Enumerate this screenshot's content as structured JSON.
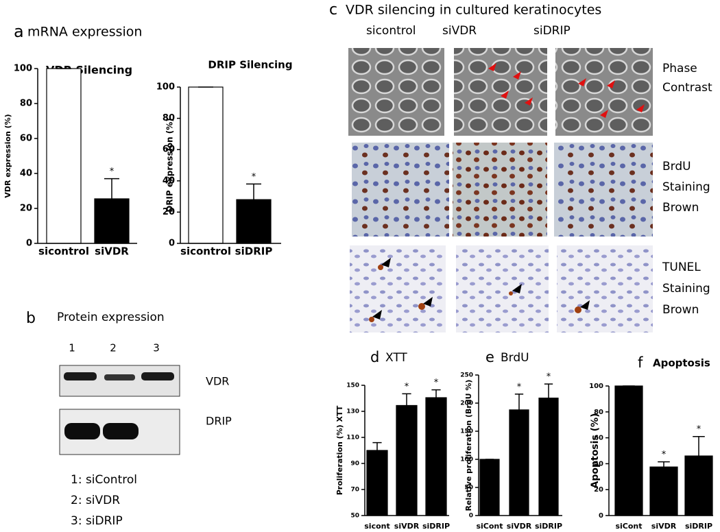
{
  "panel_a": {
    "letter": "a",
    "title": "mRNA expression"
  },
  "panel_b": {
    "letter": "b",
    "title": "Protein expression",
    "lanes": [
      "1",
      "2",
      "3"
    ],
    "bands": [
      "VDR",
      "DRIP"
    ],
    "legend": [
      "1: siControl",
      "2: siVDR",
      "3: siDRIP"
    ]
  },
  "panel_c": {
    "letter": "c",
    "title": "VDR silencing in cultured keratinocytes",
    "columns": [
      "sicontrol",
      "siVDR",
      "siDRIP"
    ],
    "rows": [
      [
        "Phase",
        "Contrast"
      ],
      [
        "BrdU",
        "Staining",
        "Brown"
      ],
      [
        "TUNEL",
        "Staining",
        "Brown"
      ]
    ]
  },
  "chart_data": [
    {
      "type": "bar",
      "title": "VDR  Silencing",
      "ylabel": "VDR expression (%)",
      "categories": [
        "sicontrol",
        "siVDR"
      ],
      "values": [
        100,
        25.5
      ],
      "errors": [
        0,
        11.5
      ],
      "markers": [
        null,
        "*"
      ],
      "colors": [
        "#ffffff",
        "#000000"
      ],
      "ylim": [
        0,
        100
      ],
      "yticks": [
        0,
        20,
        40,
        60,
        80,
        100
      ]
    },
    {
      "type": "bar",
      "title": "DRIP Silencing",
      "ylabel": "DRIP expression (%)",
      "categories": [
        "sicontrol",
        "siDRIP"
      ],
      "values": [
        100,
        28
      ],
      "errors": [
        0,
        10
      ],
      "markers": [
        null,
        "*"
      ],
      "colors": [
        "#ffffff",
        "#000000"
      ],
      "ylim": [
        0,
        100
      ],
      "yticks": [
        0,
        20,
        40,
        60,
        80,
        100
      ]
    },
    {
      "type": "bar",
      "panel": "d",
      "title": "XTT",
      "ylabel": "Proliferation (%) XTT",
      "categories": [
        "sicont",
        "siVDR",
        "siDRIP"
      ],
      "values": [
        100,
        134.5,
        140.5
      ],
      "errors": [
        6,
        9,
        6
      ],
      "markers": [
        null,
        "*",
        "*"
      ],
      "colors": [
        "#000000",
        "#000000",
        "#000000"
      ],
      "ylim": [
        50,
        150
      ],
      "yticks": [
        50,
        70,
        90,
        110,
        130,
        150
      ]
    },
    {
      "type": "bar",
      "panel": "e",
      "title": "BrdU",
      "ylabel": "Relative proliferation  (BrdU %)",
      "categories": [
        "siCont",
        "siVDR",
        "siDRIP"
      ],
      "values": [
        100,
        188,
        209
      ],
      "errors": [
        0,
        28,
        25
      ],
      "markers": [
        null,
        "*",
        "*"
      ],
      "colors": [
        "#000000",
        "#000000",
        "#000000"
      ],
      "ylim": [
        0,
        250
      ],
      "yticks": [
        0,
        50,
        100,
        150,
        200,
        250
      ]
    },
    {
      "type": "bar",
      "panel": "f",
      "title": "Apoptosis",
      "ylabel": "Apoptosis  (%)",
      "categories": [
        "siCont",
        "siVDR",
        "siDRIP"
      ],
      "values": [
        100,
        37.5,
        46
      ],
      "errors": [
        0,
        4,
        15
      ],
      "markers": [
        null,
        "*",
        "*"
      ],
      "colors": [
        "#000000",
        "#000000",
        "#000000"
      ],
      "ylim": [
        0,
        100
      ],
      "yticks": [
        0,
        20,
        40,
        60,
        80,
        100
      ]
    }
  ]
}
